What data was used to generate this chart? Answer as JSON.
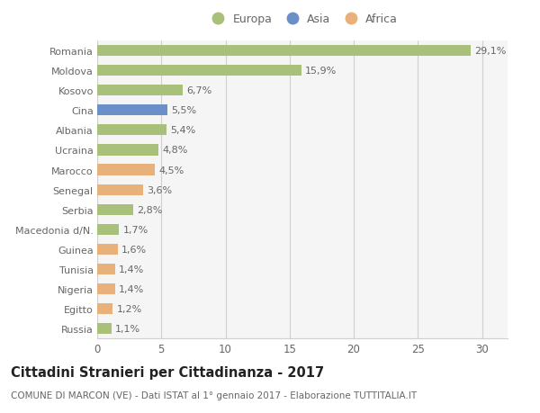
{
  "countries": [
    "Romania",
    "Moldova",
    "Kosovo",
    "Cina",
    "Albania",
    "Ucraina",
    "Marocco",
    "Senegal",
    "Serbia",
    "Macedonia d/N.",
    "Guinea",
    "Tunisia",
    "Nigeria",
    "Egitto",
    "Russia"
  ],
  "values": [
    29.1,
    15.9,
    6.7,
    5.5,
    5.4,
    4.8,
    4.5,
    3.6,
    2.8,
    1.7,
    1.6,
    1.4,
    1.4,
    1.2,
    1.1
  ],
  "labels": [
    "29,1%",
    "15,9%",
    "6,7%",
    "5,5%",
    "5,4%",
    "4,8%",
    "4,5%",
    "3,6%",
    "2,8%",
    "1,7%",
    "1,6%",
    "1,4%",
    "1,4%",
    "1,2%",
    "1,1%"
  ],
  "continents": [
    "Europa",
    "Europa",
    "Europa",
    "Asia",
    "Europa",
    "Europa",
    "Africa",
    "Africa",
    "Europa",
    "Europa",
    "Africa",
    "Africa",
    "Africa",
    "Africa",
    "Europa"
  ],
  "colors": {
    "Europa": "#a8c07a",
    "Asia": "#6b8fc7",
    "Africa": "#e8b07a"
  },
  "xlim": [
    0,
    32
  ],
  "xticks": [
    0,
    5,
    10,
    15,
    20,
    25,
    30
  ],
  "background_color": "#ffffff",
  "plot_bg_color": "#f5f5f5",
  "grid_color": "#d0d0d0",
  "title": "Cittadini Stranieri per Cittadinanza - 2017",
  "subtitle": "COMUNE DI MARCON (VE) - Dati ISTAT al 1° gennaio 2017 - Elaborazione TUTTITALIA.IT",
  "title_fontsize": 10.5,
  "subtitle_fontsize": 7.5,
  "bar_height": 0.55,
  "label_fontsize": 8,
  "ytick_fontsize": 8,
  "xtick_fontsize": 8.5,
  "text_color": "#666666"
}
